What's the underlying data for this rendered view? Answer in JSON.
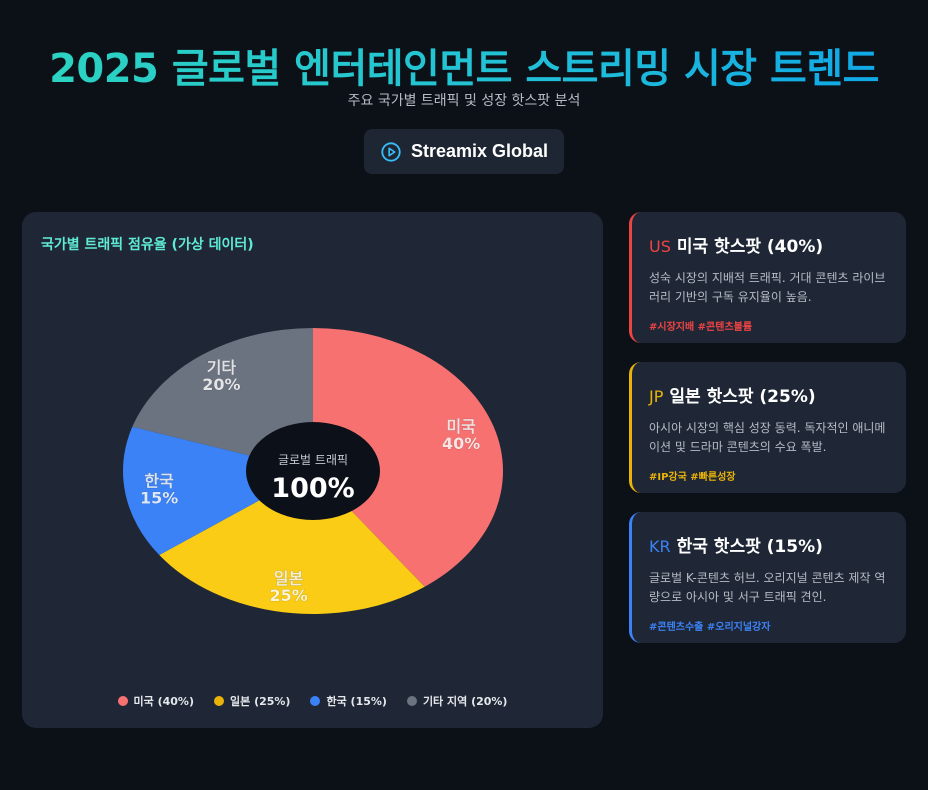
{
  "header": {
    "title": "2025 글로벌 엔터테인먼트 스트리밍 시장 트렌드",
    "subtitle": "주요 국가별 트래픽 및 성장 핫스팟 분석",
    "brand_name": "Streamix Global",
    "brand_icon": "play-circle-icon"
  },
  "chart_data": {
    "type": "pie",
    "title": "국가별 트래픽 점유율 (가상 데이터)",
    "categories": [
      "미국",
      "일본",
      "한국",
      "기타"
    ],
    "values": [
      40,
      25,
      15,
      20
    ],
    "slice_labels": [
      {
        "name": "미국",
        "value": "40%"
      },
      {
        "name": "일본",
        "value": "25%"
      },
      {
        "name": "한국",
        "value": "15%"
      },
      {
        "name": "기타",
        "value": "20%"
      }
    ],
    "colors": [
      "#f87171",
      "#facc15",
      "#3b82f6",
      "#6b7280"
    ],
    "center": {
      "label": "글로벌 트래픽",
      "value": "100%"
    },
    "legend": [
      {
        "label": "미국 (40%)",
        "color": "#f87171"
      },
      {
        "label": "일본 (25%)",
        "color": "#eab308"
      },
      {
        "label": "한국 (15%)",
        "color": "#3b82f6"
      },
      {
        "label": "기타 지역 (20%)",
        "color": "#6b7280"
      }
    ],
    "legend_position": "bottom"
  },
  "hotspots": [
    {
      "code": "US",
      "title": "미국 핫스팟 (40%)",
      "desc": "성숙 시장의 지배적 트래픽. 거대 콘텐츠 라이브러리 기반의 구독 유지율이 높음.",
      "tags": "#시장지배 #콘텐츠볼륨",
      "color": "#ef4444"
    },
    {
      "code": "JP",
      "title": "일본 핫스팟 (25%)",
      "desc": "아시아 시장의 핵심 성장 동력. 독자적인 애니메이션 및 드라마 콘텐츠의 수요 폭발.",
      "tags": "#IP강국 #빠른성장",
      "color": "#eab308"
    },
    {
      "code": "KR",
      "title": "한국 핫스팟 (15%)",
      "desc": "글로벌 K-콘텐츠 허브. 오리지널 콘텐츠 제작 역량으로 아시아 및 서구 트래픽 견인.",
      "tags": "#콘텐츠수출 #오리지널강자",
      "color": "#3b82f6"
    }
  ]
}
